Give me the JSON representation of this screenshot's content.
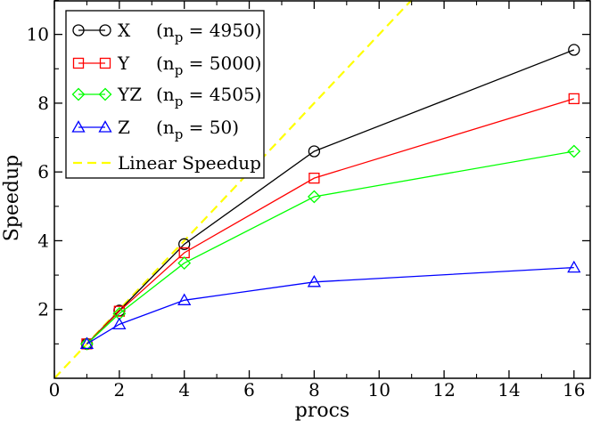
{
  "chart_data": {
    "type": "line",
    "title": "",
    "xlabel": "procs",
    "ylabel": "Speedup",
    "xlim": [
      0,
      16.5
    ],
    "ylim": [
      0,
      11
    ],
    "x_ticks": [
      0,
      2,
      4,
      6,
      8,
      10,
      12,
      14,
      16
    ],
    "y_ticks": [
      2,
      4,
      6,
      8,
      10
    ],
    "x_tick_labels": [
      "0",
      "2",
      "4",
      "6",
      "8",
      "10",
      "12",
      "14",
      "16"
    ],
    "y_tick_labels": [
      "2",
      "4",
      "6",
      "8",
      "10"
    ],
    "legend_position": "top-left",
    "series": [
      {
        "name": "X",
        "np_text": "(n",
        "np_sub": "p",
        "np_value": "= 4950)",
        "color": "#000000",
        "marker": "circle",
        "x": [
          1,
          2,
          4,
          8,
          16
        ],
        "y": [
          1.0,
          1.97,
          3.9,
          6.6,
          9.55
        ]
      },
      {
        "name": "Y",
        "np_text": "(n",
        "np_sub": "p",
        "np_value": "= 5000)",
        "color": "#ff0000",
        "marker": "square",
        "x": [
          1,
          2,
          4,
          8,
          16
        ],
        "y": [
          1.0,
          1.95,
          3.65,
          5.82,
          8.13
        ]
      },
      {
        "name": "YZ",
        "np_text": "(n",
        "np_sub": "p",
        "np_value": "= 4505)",
        "color": "#00ff00",
        "marker": "diamond",
        "x": [
          1,
          2,
          4,
          8,
          16
        ],
        "y": [
          1.0,
          1.88,
          3.35,
          5.28,
          6.6
        ]
      },
      {
        "name": "Z",
        "np_text": "(n",
        "np_sub": "p",
        "np_value": "= 50)",
        "color": "#0000ff",
        "marker": "triangle",
        "x": [
          1,
          2,
          4,
          8,
          16
        ],
        "y": [
          1.0,
          1.57,
          2.27,
          2.8,
          3.22
        ]
      }
    ],
    "reference_line": {
      "name": "Linear Speedup",
      "color": "#ffff00",
      "style": "dashed",
      "x": [
        0,
        11
      ],
      "y": [
        0,
        11
      ]
    }
  }
}
